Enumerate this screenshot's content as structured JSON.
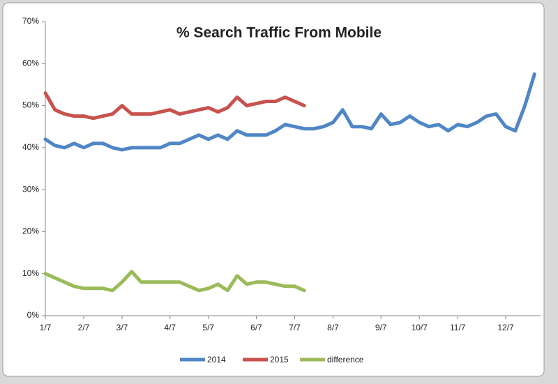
{
  "chart_data": {
    "type": "line",
    "title": "% Search Traffic From Mobile",
    "categories": [
      "1/7",
      null,
      null,
      null,
      "2/7",
      null,
      null,
      null,
      "3/7",
      null,
      null,
      null,
      null,
      "4/7",
      null,
      null,
      null,
      "5/7",
      null,
      null,
      null,
      null,
      "6/7",
      null,
      null,
      null,
      "7/7",
      null,
      null,
      null,
      "8/7",
      null,
      null,
      null,
      null,
      "9/7",
      null,
      null,
      null,
      "10/7",
      null,
      null,
      null,
      "11/7",
      null,
      null,
      null,
      null,
      "12/7",
      null,
      null,
      null
    ],
    "series": [
      {
        "name": "2014",
        "color": "#4f86c6",
        "values": [
          42,
          40.5,
          40,
          41,
          40,
          41,
          41,
          40,
          39.5,
          40,
          40,
          40,
          40,
          41,
          41,
          42,
          43,
          42,
          43,
          42,
          44,
          43,
          43,
          43,
          44,
          45.5,
          45,
          44.5,
          44.5,
          45,
          46,
          49,
          45,
          45,
          44.5,
          48,
          45.5,
          46,
          47.5,
          46,
          45,
          45.5,
          44,
          45.5,
          45,
          46,
          47.5,
          48,
          45,
          44,
          50,
          57.5
        ]
      },
      {
        "name": "2015",
        "color": "#c8524d",
        "values": [
          53,
          49,
          48,
          47.5,
          47.5,
          47,
          47.5,
          48,
          50,
          48,
          48,
          48,
          48.5,
          49,
          48,
          48.5,
          49,
          49.5,
          48.5,
          49.5,
          52,
          50,
          50.5,
          51,
          51,
          52,
          51,
          50,
          null,
          null,
          null,
          null,
          null,
          null,
          null,
          null,
          null,
          null,
          null,
          null,
          null,
          null,
          null,
          null,
          null,
          null,
          null,
          null,
          null,
          null,
          null,
          null
        ]
      },
      {
        "name": "difference",
        "color": "#9bbb59",
        "values": [
          10,
          9,
          8,
          7,
          6.5,
          6.5,
          6.5,
          6,
          8,
          10.5,
          8,
          8,
          8,
          8,
          8,
          7,
          6,
          6.5,
          7.5,
          6,
          9.5,
          7.5,
          8,
          8,
          7.5,
          7,
          7,
          6,
          null,
          null,
          null,
          null,
          null,
          null,
          null,
          null,
          null,
          null,
          null,
          null,
          null,
          null,
          null,
          null,
          null,
          null,
          null,
          null,
          null,
          null,
          null,
          null
        ]
      }
    ],
    "ylim": [
      0,
      70
    ],
    "yticks": [
      {
        "value": 0,
        "label": "0%"
      },
      {
        "value": 10,
        "label": "10%"
      },
      {
        "value": 20,
        "label": "20%"
      },
      {
        "value": 30,
        "label": "30%"
      },
      {
        "value": 40,
        "label": "40%"
      },
      {
        "value": 50,
        "label": "50%"
      },
      {
        "value": 60,
        "label": "60%"
      },
      {
        "value": 70,
        "label": "70%"
      }
    ],
    "legend": "bottom"
  }
}
